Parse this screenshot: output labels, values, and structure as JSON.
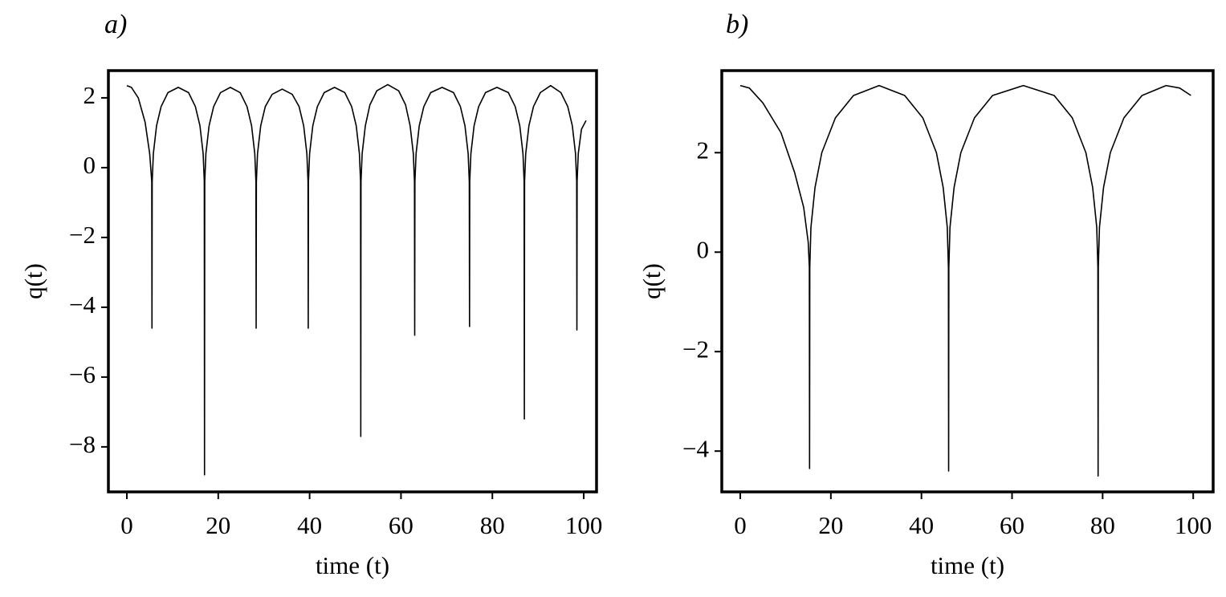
{
  "chart_data": [
    {
      "type": "line",
      "title": "a)",
      "x_label": "time (t)",
      "y_label": "q(t)",
      "color": "#000000",
      "x": [
        0,
        1,
        2.5,
        4,
        5,
        5.45,
        5.5,
        5.55,
        5.8,
        6.5,
        7.5,
        9,
        11.25,
        13.5,
        15,
        16,
        16.7,
        16.95,
        17,
        17.05,
        17.3,
        18,
        19,
        20.5,
        22.65,
        24.8,
        26.3,
        27.3,
        28,
        28.25,
        28.3,
        28.35,
        28.6,
        29.3,
        30.3,
        31.8,
        34,
        36.2,
        37.7,
        38.7,
        39.4,
        39.65,
        39.7,
        39.75,
        40,
        40.7,
        41.7,
        43.2,
        45.45,
        47.7,
        49.2,
        50.2,
        50.9,
        51.15,
        51.2,
        51.25,
        51.5,
        52.2,
        53.2,
        54.7,
        57.1,
        59.5,
        61,
        62,
        62.7,
        62.95,
        63,
        63.05,
        63.3,
        64,
        65,
        66.5,
        69,
        71.5,
        73,
        74,
        74.7,
        74.95,
        75,
        75.05,
        75.3,
        76,
        77,
        78.5,
        81,
        83.5,
        85,
        86,
        86.7,
        86.95,
        87,
        87.05,
        87.3,
        88,
        89,
        90.5,
        92.75,
        95,
        96.5,
        97.5,
        98.2,
        98.45,
        98.5,
        98.55,
        98.8,
        99.5,
        100.5
      ],
      "values": [
        2.35,
        2.3,
        2.0,
        1.3,
        0.4,
        -0.4,
        -4.6,
        -0.4,
        0.4,
        1.2,
        1.75,
        2.15,
        2.3,
        2.15,
        1.75,
        1.2,
        0.4,
        -0.4,
        -8.8,
        -0.4,
        0.4,
        1.2,
        1.75,
        2.15,
        2.3,
        2.15,
        1.75,
        1.2,
        0.4,
        -0.4,
        -4.6,
        -0.4,
        0.4,
        1.2,
        1.75,
        2.1,
        2.25,
        2.1,
        1.75,
        1.2,
        0.4,
        -0.4,
        -4.6,
        -0.4,
        0.4,
        1.2,
        1.75,
        2.15,
        2.3,
        2.15,
        1.75,
        1.2,
        0.4,
        -0.4,
        -7.7,
        -0.4,
        0.4,
        1.2,
        1.8,
        2.2,
        2.38,
        2.2,
        1.8,
        1.2,
        0.4,
        -0.4,
        -4.8,
        -0.4,
        0.4,
        1.2,
        1.75,
        2.15,
        2.3,
        2.15,
        1.75,
        1.2,
        0.4,
        -0.4,
        -4.55,
        -0.4,
        0.4,
        1.2,
        1.75,
        2.15,
        2.3,
        2.15,
        1.75,
        1.2,
        0.4,
        -0.4,
        -7.2,
        -0.4,
        0.4,
        1.2,
        1.75,
        2.15,
        2.35,
        2.15,
        1.75,
        1.2,
        0.4,
        -0.4,
        -4.65,
        -0.4,
        0.4,
        1.1,
        1.35
      ],
      "xlim": [
        -4.04,
        102.8
      ],
      "ylim": [
        -9.29,
        2.78
      ],
      "xticks": [
        0,
        20,
        40,
        60,
        80,
        100
      ],
      "yticks": [
        {
          "value": -8,
          "label": "−8"
        },
        {
          "value": -6,
          "label": "−6"
        },
        {
          "value": -4,
          "label": "−4"
        },
        {
          "value": -2,
          "label": "−2"
        },
        0,
        2
      ]
    },
    {
      "type": "line",
      "title": "b)",
      "x_label": "time (t)",
      "y_label": "q(t)",
      "color": "#000000",
      "x": [
        0,
        2,
        5,
        9,
        12,
        14,
        15,
        15.25,
        15.3,
        15.35,
        15.6,
        16.5,
        18,
        21,
        25,
        30.65,
        36.3,
        40.3,
        43.3,
        44.8,
        45.7,
        45.95,
        46,
        46.05,
        46.3,
        47.2,
        48.7,
        51.7,
        55.7,
        62.5,
        69.3,
        73.3,
        76.3,
        77.8,
        78.7,
        78.95,
        79,
        79.05,
        79.3,
        80.2,
        81.7,
        84.7,
        88.7,
        94,
        97,
        99.5
      ],
      "values": [
        3.35,
        3.3,
        3.0,
        2.4,
        1.6,
        0.9,
        0.2,
        -0.3,
        -4.35,
        -0.3,
        0.5,
        1.3,
        2.0,
        2.7,
        3.15,
        3.35,
        3.15,
        2.7,
        2.0,
        1.3,
        0.5,
        -0.3,
        -4.4,
        -0.3,
        0.5,
        1.3,
        2.0,
        2.7,
        3.15,
        3.35,
        3.15,
        2.7,
        2.0,
        1.3,
        0.5,
        -0.3,
        -4.5,
        -0.3,
        0.5,
        1.3,
        2.0,
        2.7,
        3.15,
        3.35,
        3.3,
        3.15
      ],
      "xlim": [
        -4.08,
        104.4
      ],
      "ylim": [
        -4.82,
        3.65
      ],
      "xticks": [
        0,
        20,
        40,
        60,
        80,
        100
      ],
      "yticks": [
        {
          "value": -4,
          "label": "−4"
        },
        {
          "value": -2,
          "label": "−2"
        },
        0,
        2
      ]
    }
  ]
}
